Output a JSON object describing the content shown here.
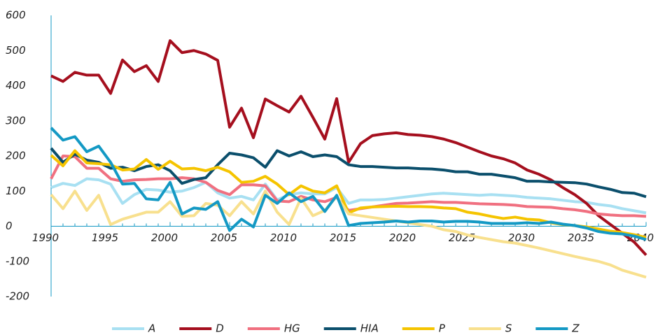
{
  "chart_data": {
    "type": "line",
    "x": [
      1990,
      1991,
      1992,
      1993,
      1994,
      1995,
      1996,
      1997,
      1998,
      1999,
      2000,
      2001,
      2002,
      2003,
      2004,
      2005,
      2006,
      2007,
      2008,
      2009,
      2010,
      2011,
      2012,
      2013,
      2014,
      2015,
      2016,
      2017,
      2018,
      2019,
      2020,
      2021,
      2022,
      2023,
      2024,
      2025,
      2026,
      2027,
      2028,
      2029,
      2030,
      2031,
      2032,
      2033,
      2034,
      2035,
      2036,
      2037,
      2038,
      2039,
      2040
    ],
    "xlim": [
      1990,
      2040
    ],
    "xticks": [
      1990,
      1995,
      2000,
      2005,
      2010,
      2015,
      2020,
      2025,
      2030,
      2035,
      2040
    ],
    "ylim": [
      -200,
      600
    ],
    "yticks": [
      -200,
      -100,
      0,
      100,
      200,
      300,
      400,
      500,
      600
    ],
    "grid": false,
    "legend": "bottom",
    "series": [
      {
        "name": "A",
        "color": "#a8e0f2",
        "values": [
          110,
          122,
          116,
          135,
          132,
          120,
          65,
          90,
          105,
          103,
          97,
          100,
          110,
          125,
          95,
          80,
          85,
          75,
          120,
          75,
          90,
          95,
          92,
          92,
          110,
          65,
          75,
          75,
          76,
          80,
          84,
          88,
          92,
          94,
          92,
          90,
          88,
          90,
          88,
          86,
          82,
          80,
          78,
          74,
          70,
          68,
          62,
          58,
          50,
          44,
          38
        ]
      },
      {
        "name": "D",
        "color": "#a50f1e",
        "values": [
          428,
          412,
          438,
          430,
          430,
          378,
          473,
          440,
          457,
          412,
          528,
          494,
          500,
          490,
          472,
          282,
          336,
          252,
          362,
          343,
          325,
          370,
          310,
          248,
          363,
          182,
          235,
          258,
          263,
          266,
          261,
          259,
          255,
          248,
          238,
          225,
          212,
          200,
          192,
          180,
          160,
          148,
          132,
          110,
          90,
          65,
          30,
          5,
          -20,
          -45,
          -82
        ]
      },
      {
        "name": "HG",
        "color": "#f07080",
        "values": [
          135,
          200,
          198,
          165,
          165,
          135,
          128,
          132,
          133,
          135,
          135,
          138,
          135,
          125,
          102,
          90,
          118,
          118,
          115,
          72,
          70,
          85,
          75,
          70,
          82,
          45,
          50,
          55,
          60,
          65,
          66,
          68,
          70,
          68,
          68,
          66,
          64,
          63,
          62,
          60,
          56,
          55,
          54,
          50,
          47,
          42,
          35,
          32,
          30,
          30,
          28
        ]
      },
      {
        "name": "HIA",
        "color": "#0b4f6c",
        "values": [
          222,
          182,
          205,
          188,
          182,
          165,
          168,
          158,
          170,
          175,
          158,
          122,
          133,
          138,
          175,
          208,
          203,
          195,
          168,
          215,
          200,
          212,
          198,
          203,
          198,
          175,
          170,
          170,
          168,
          166,
          166,
          164,
          163,
          160,
          155,
          155,
          148,
          148,
          143,
          138,
          128,
          128,
          126,
          125,
          124,
          120,
          112,
          105,
          96,
          94,
          84
        ]
      },
      {
        "name": "P",
        "color": "#f5c400",
        "values": [
          202,
          172,
          215,
          180,
          178,
          175,
          160,
          163,
          190,
          162,
          185,
          163,
          165,
          158,
          168,
          155,
          125,
          128,
          142,
          120,
          90,
          115,
          100,
          95,
          115,
          38,
          52,
          55,
          56,
          57,
          56,
          56,
          55,
          52,
          50,
          40,
          35,
          28,
          22,
          26,
          20,
          18,
          10,
          5,
          2,
          -2,
          -8,
          -14,
          -18,
          -24,
          -32
        ]
      },
      {
        "name": "S",
        "color": "#f8e08e",
        "values": [
          90,
          50,
          100,
          45,
          88,
          5,
          20,
          30,
          40,
          40,
          70,
          28,
          30,
          65,
          60,
          30,
          70,
          35,
          100,
          40,
          5,
          80,
          30,
          45,
          85,
          35,
          30,
          25,
          20,
          15,
          10,
          5,
          0,
          -10,
          -15,
          -25,
          -32,
          -38,
          -44,
          -48,
          -55,
          -62,
          -70,
          -78,
          -86,
          -93,
          -100,
          -110,
          -125,
          -135,
          -145
        ]
      },
      {
        "name": "Z",
        "color": "#1499c4",
        "values": [
          280,
          245,
          255,
          212,
          228,
          182,
          120,
          122,
          78,
          75,
          125,
          35,
          52,
          48,
          70,
          -12,
          20,
          -2,
          88,
          65,
          95,
          70,
          85,
          42,
          88,
          2,
          8,
          10,
          12,
          15,
          12,
          15,
          15,
          12,
          14,
          14,
          12,
          8,
          8,
          8,
          10,
          8,
          12,
          6,
          2,
          -5,
          -15,
          -20,
          -22,
          -28,
          -38
        ]
      }
    ]
  }
}
